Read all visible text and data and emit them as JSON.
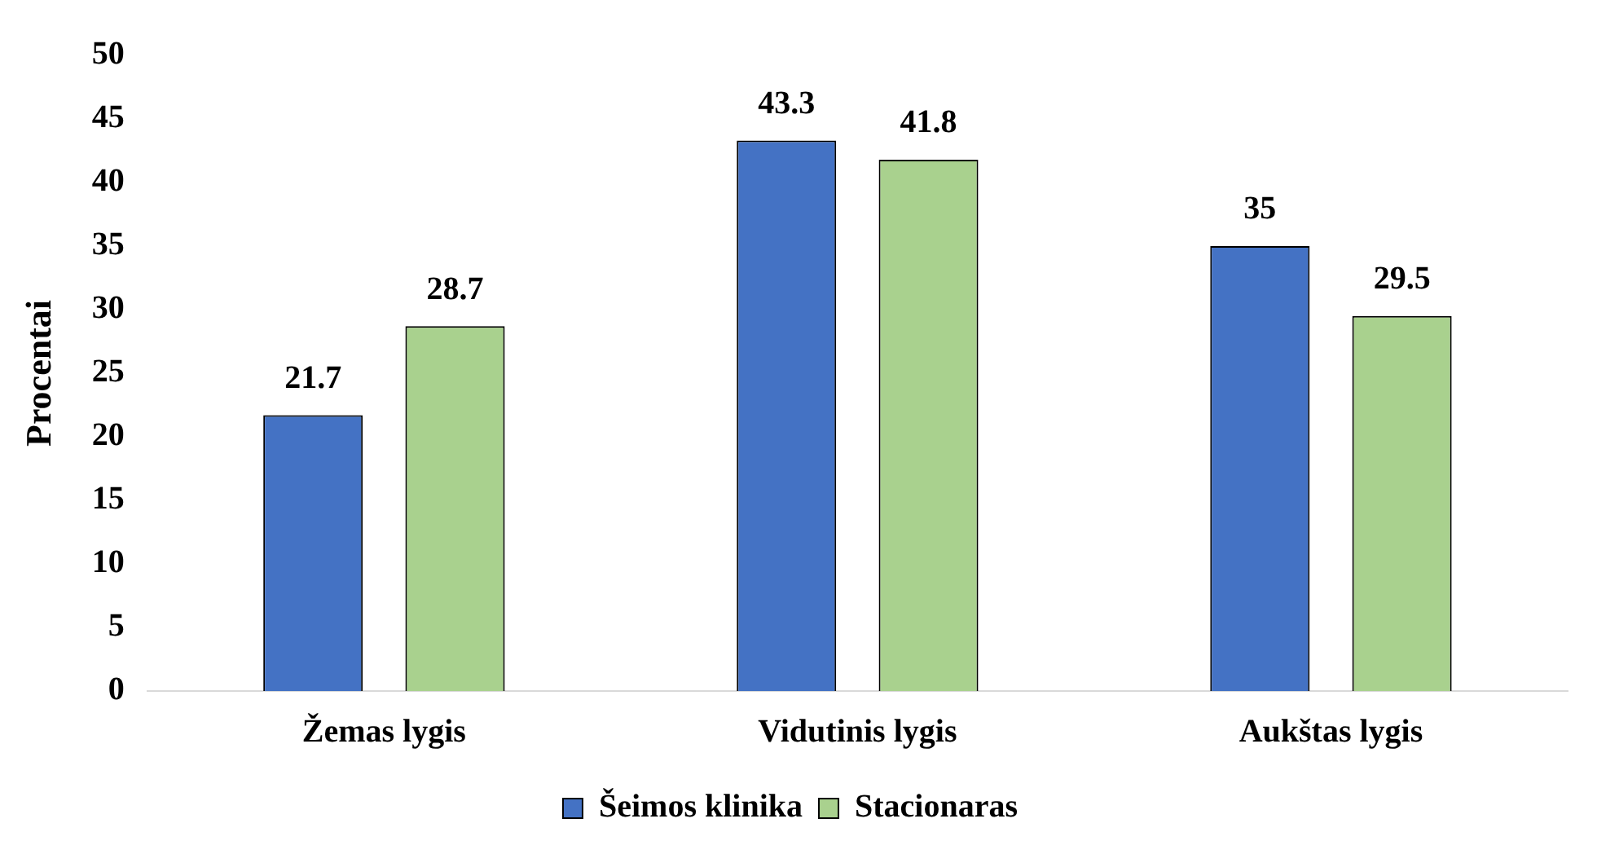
{
  "chart_data": {
    "type": "bar",
    "ylabel": "Procentai",
    "categories": [
      "Žemas lygis",
      "Vidutinis lygis",
      "Aukštas lygis"
    ],
    "series": [
      {
        "name": "Šeimos klinika",
        "color": "#4472c4",
        "values": [
          21.7,
          43.3,
          35
        ]
      },
      {
        "name": "Stacionaras",
        "color": "#a9d18e",
        "values": [
          28.7,
          41.8,
          29.5
        ]
      }
    ],
    "ylim": [
      0,
      50
    ],
    "yticks": [
      0,
      5,
      10,
      15,
      20,
      25,
      30,
      35,
      40,
      45,
      50
    ],
    "grid": false,
    "legend": "bottom",
    "data_labels": true
  }
}
